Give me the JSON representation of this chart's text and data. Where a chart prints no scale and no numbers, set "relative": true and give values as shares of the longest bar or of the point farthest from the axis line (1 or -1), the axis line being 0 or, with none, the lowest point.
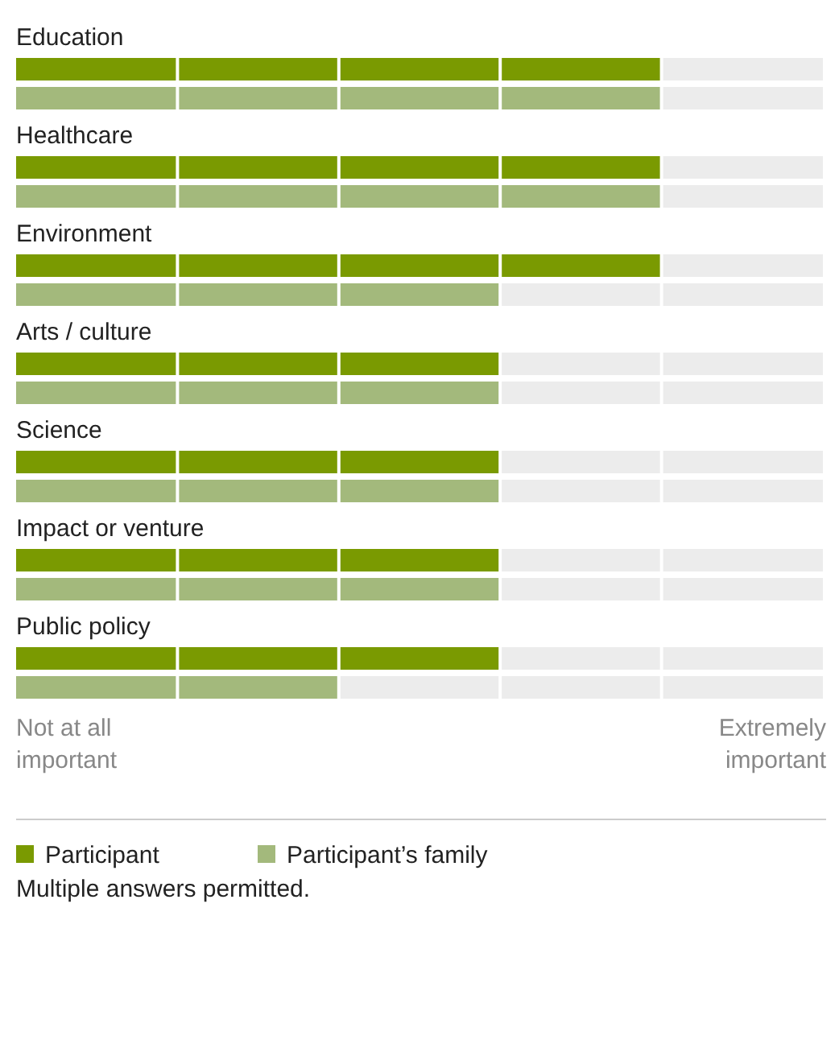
{
  "chart_data": {
    "type": "bar",
    "orientation": "horizontal",
    "relative": true,
    "categories": [
      "Education",
      "Healthcare",
      "Environment",
      "Arts / culture",
      "Science",
      "Impact or venture",
      "Public policy"
    ],
    "series": [
      {
        "name": "Participant",
        "color": "#7a9a01",
        "values": [
          1,
          1,
          1,
          0.75,
          0.75,
          0.75,
          0.75
        ]
      },
      {
        "name": "Participant’s family",
        "color": "#a3b97c",
        "values": [
          1,
          1,
          0.75,
          0.75,
          0.75,
          0.75,
          0.5
        ]
      }
    ],
    "legend": "bottom",
    "annotations": [
      "Not at all important",
      "Extremely important",
      "Multiple answers permitted."
    ]
  }
}
